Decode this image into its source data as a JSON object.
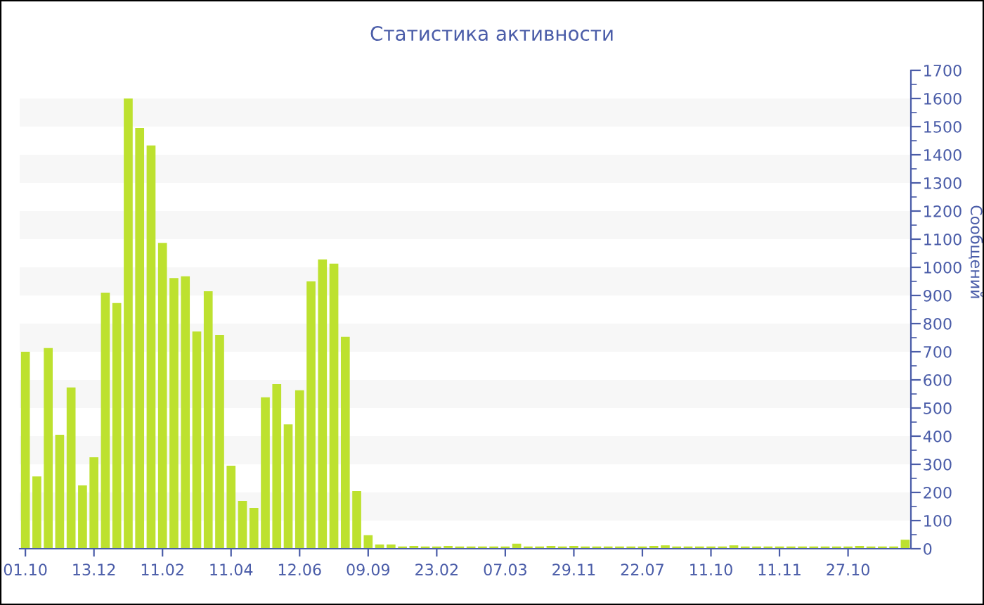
{
  "chart_data": {
    "type": "bar",
    "title": "Статистика активности",
    "ylabel": "Сообщений",
    "categories": [
      "01.10",
      null,
      null,
      null,
      null,
      null,
      "13.12",
      null,
      null,
      null,
      null,
      null,
      "11.02",
      null,
      null,
      null,
      null,
      null,
      "11.04",
      null,
      null,
      null,
      null,
      null,
      "12.06",
      null,
      null,
      null,
      null,
      null,
      "09.09",
      null,
      null,
      null,
      null,
      null,
      "23.02",
      null,
      null,
      null,
      null,
      null,
      "07.03",
      null,
      null,
      null,
      null,
      null,
      "29.11",
      null,
      null,
      null,
      null,
      null,
      "22.07",
      null,
      null,
      null,
      null,
      null,
      "11.10",
      null,
      null,
      null,
      null,
      null,
      "11.11",
      null,
      null,
      null,
      null,
      null,
      "27.10",
      null,
      null,
      null,
      null,
      null
    ],
    "values": [
      700,
      257,
      713,
      405,
      573,
      225,
      325,
      910,
      873,
      1600,
      1495,
      1433,
      1087,
      962,
      968,
      772,
      915,
      760,
      295,
      170,
      145,
      538,
      585,
      442,
      563,
      950,
      1028,
      1013,
      753,
      205,
      48,
      15,
      15,
      8,
      10,
      8,
      8,
      10,
      8,
      8,
      8,
      8,
      8,
      18,
      8,
      8,
      10,
      8,
      10,
      8,
      8,
      8,
      8,
      8,
      8,
      10,
      12,
      8,
      8,
      8,
      8,
      8,
      12,
      8,
      8,
      8,
      8,
      8,
      8,
      8,
      8,
      8,
      8,
      10,
      8,
      8,
      8,
      32
    ],
    "color": "#bde12f",
    "ylim": [
      0,
      1700
    ],
    "yticks": [
      0,
      100,
      200,
      300,
      400,
      500,
      600,
      700,
      800,
      900,
      1000,
      1100,
      1200,
      1300,
      1400,
      1500,
      1600,
      1700
    ],
    "bands": [
      {
        "axis": "y",
        "from": 100,
        "to": 200,
        "color": "#f7f7f7"
      },
      {
        "axis": "y",
        "from": 300,
        "to": 400,
        "color": "#f7f7f7"
      },
      {
        "axis": "y",
        "from": 500,
        "to": 600,
        "color": "#f7f7f7"
      },
      {
        "axis": "y",
        "from": 700,
        "to": 800,
        "color": "#f7f7f7"
      },
      {
        "axis": "y",
        "from": 900,
        "to": 1000,
        "color": "#f7f7f7"
      },
      {
        "axis": "y",
        "from": 1100,
        "to": 1200,
        "color": "#f7f7f7"
      },
      {
        "axis": "y",
        "from": 1300,
        "to": 1400,
        "color": "#f7f7f7"
      },
      {
        "axis": "y",
        "from": 1500,
        "to": 1600,
        "color": "#f7f7f7"
      }
    ]
  }
}
